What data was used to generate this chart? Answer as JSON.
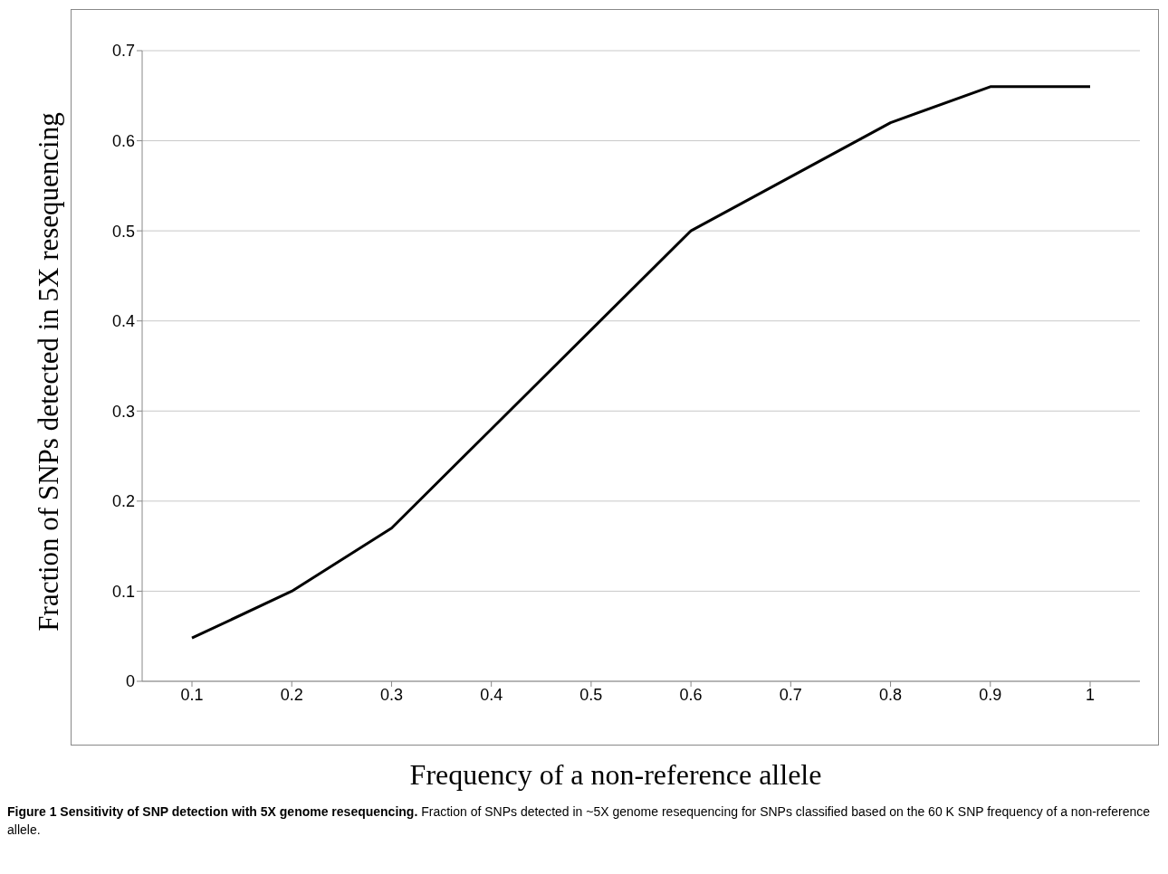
{
  "chart_data": {
    "type": "line",
    "title": "Figure 1 Sensitivity of SNP detection with 5X genome resequencing.",
    "annotations": [
      "Fraction of SNPs detected in ~5X genome resequencing for SNPs classified based on the 60 K SNP frequency of a non-reference allele."
    ],
    "xlabel": "Frequency of a non-reference allele",
    "ylabel": "Fraction of SNPs detected in 5X resequencing",
    "categories": [
      "0.1",
      "0.2",
      "0.3",
      "0.4",
      "0.5",
      "0.6",
      "0.7",
      "0.8",
      "0.9",
      "1"
    ],
    "series": [
      {
        "color": "#000000",
        "values": [
          0.048,
          0.1,
          0.17,
          0.28,
          0.39,
          0.5,
          0.56,
          0.62,
          0.66,
          0.66
        ]
      }
    ],
    "ylim": [
      0,
      0.7
    ],
    "yticks": [
      0,
      0.1,
      0.2,
      0.3,
      0.4,
      0.5,
      0.6,
      0.7
    ],
    "grid": "y",
    "marker": "none",
    "line_style": "solid"
  }
}
